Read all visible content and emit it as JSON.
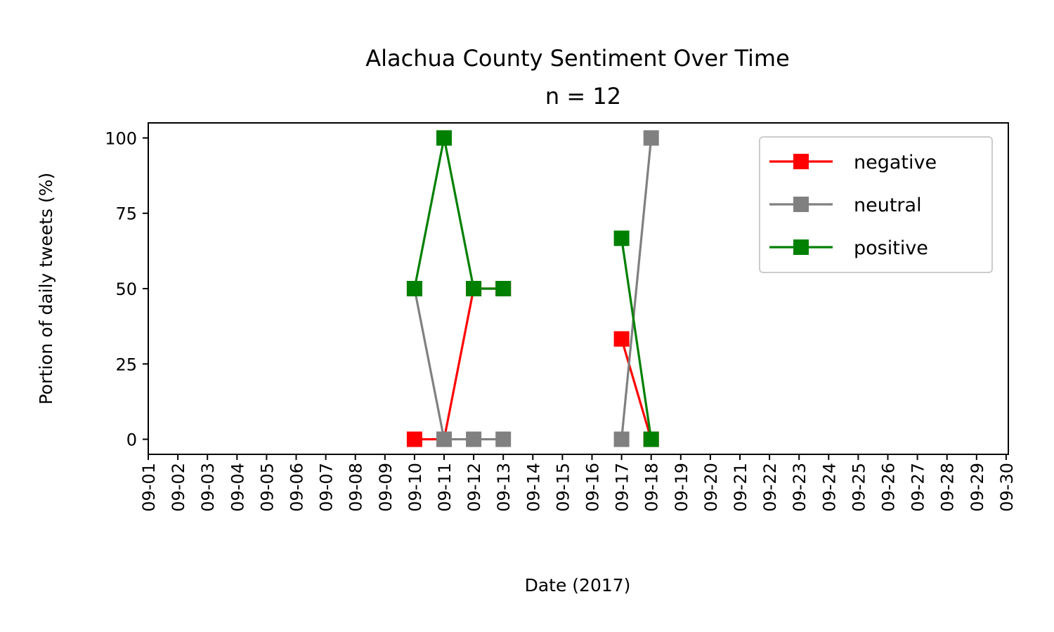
{
  "chart_data": {
    "type": "line",
    "title": "Alachua County Sentiment Over Time",
    "subtitle": "n = 12",
    "xlabel": "Date (2017)",
    "ylabel": "Portion of daily tweets (%)",
    "x_categories": [
      "09-01",
      "09-02",
      "09-03",
      "09-04",
      "09-05",
      "09-06",
      "09-07",
      "09-08",
      "09-09",
      "09-10",
      "09-11",
      "09-12",
      "09-13",
      "09-14",
      "09-15",
      "09-16",
      "09-17",
      "09-18",
      "09-19",
      "09-20",
      "09-21",
      "09-22",
      "09-23",
      "09-24",
      "09-25",
      "09-26",
      "09-27",
      "09-28",
      "09-29",
      "09-30"
    ],
    "ylim": [
      -5,
      105
    ],
    "yticks": [
      0,
      25,
      50,
      75,
      100
    ],
    "grid": false,
    "legend_position": "top-right",
    "series": [
      {
        "name": "negative",
        "color": "#ff0000",
        "marker": "square",
        "segments": [
          [
            {
              "x": "09-10",
              "y": 0
            },
            {
              "x": "09-11",
              "y": 0
            },
            {
              "x": "09-12",
              "y": 50
            },
            {
              "x": "09-13",
              "y": 50
            }
          ],
          [
            {
              "x": "09-17",
              "y": 33.3
            },
            {
              "x": "09-18",
              "y": 0
            }
          ]
        ]
      },
      {
        "name": "neutral",
        "color": "#808080",
        "marker": "square",
        "segments": [
          [
            {
              "x": "09-10",
              "y": 50
            },
            {
              "x": "09-11",
              "y": 0
            },
            {
              "x": "09-12",
              "y": 0
            },
            {
              "x": "09-13",
              "y": 0
            }
          ],
          [
            {
              "x": "09-17",
              "y": 0
            },
            {
              "x": "09-18",
              "y": 100
            }
          ]
        ]
      },
      {
        "name": "positive",
        "color": "#008000",
        "marker": "square",
        "segments": [
          [
            {
              "x": "09-10",
              "y": 50
            },
            {
              "x": "09-11",
              "y": 100
            },
            {
              "x": "09-12",
              "y": 50
            },
            {
              "x": "09-13",
              "y": 50
            }
          ],
          [
            {
              "x": "09-17",
              "y": 66.7
            },
            {
              "x": "09-18",
              "y": 0
            }
          ]
        ]
      }
    ]
  }
}
